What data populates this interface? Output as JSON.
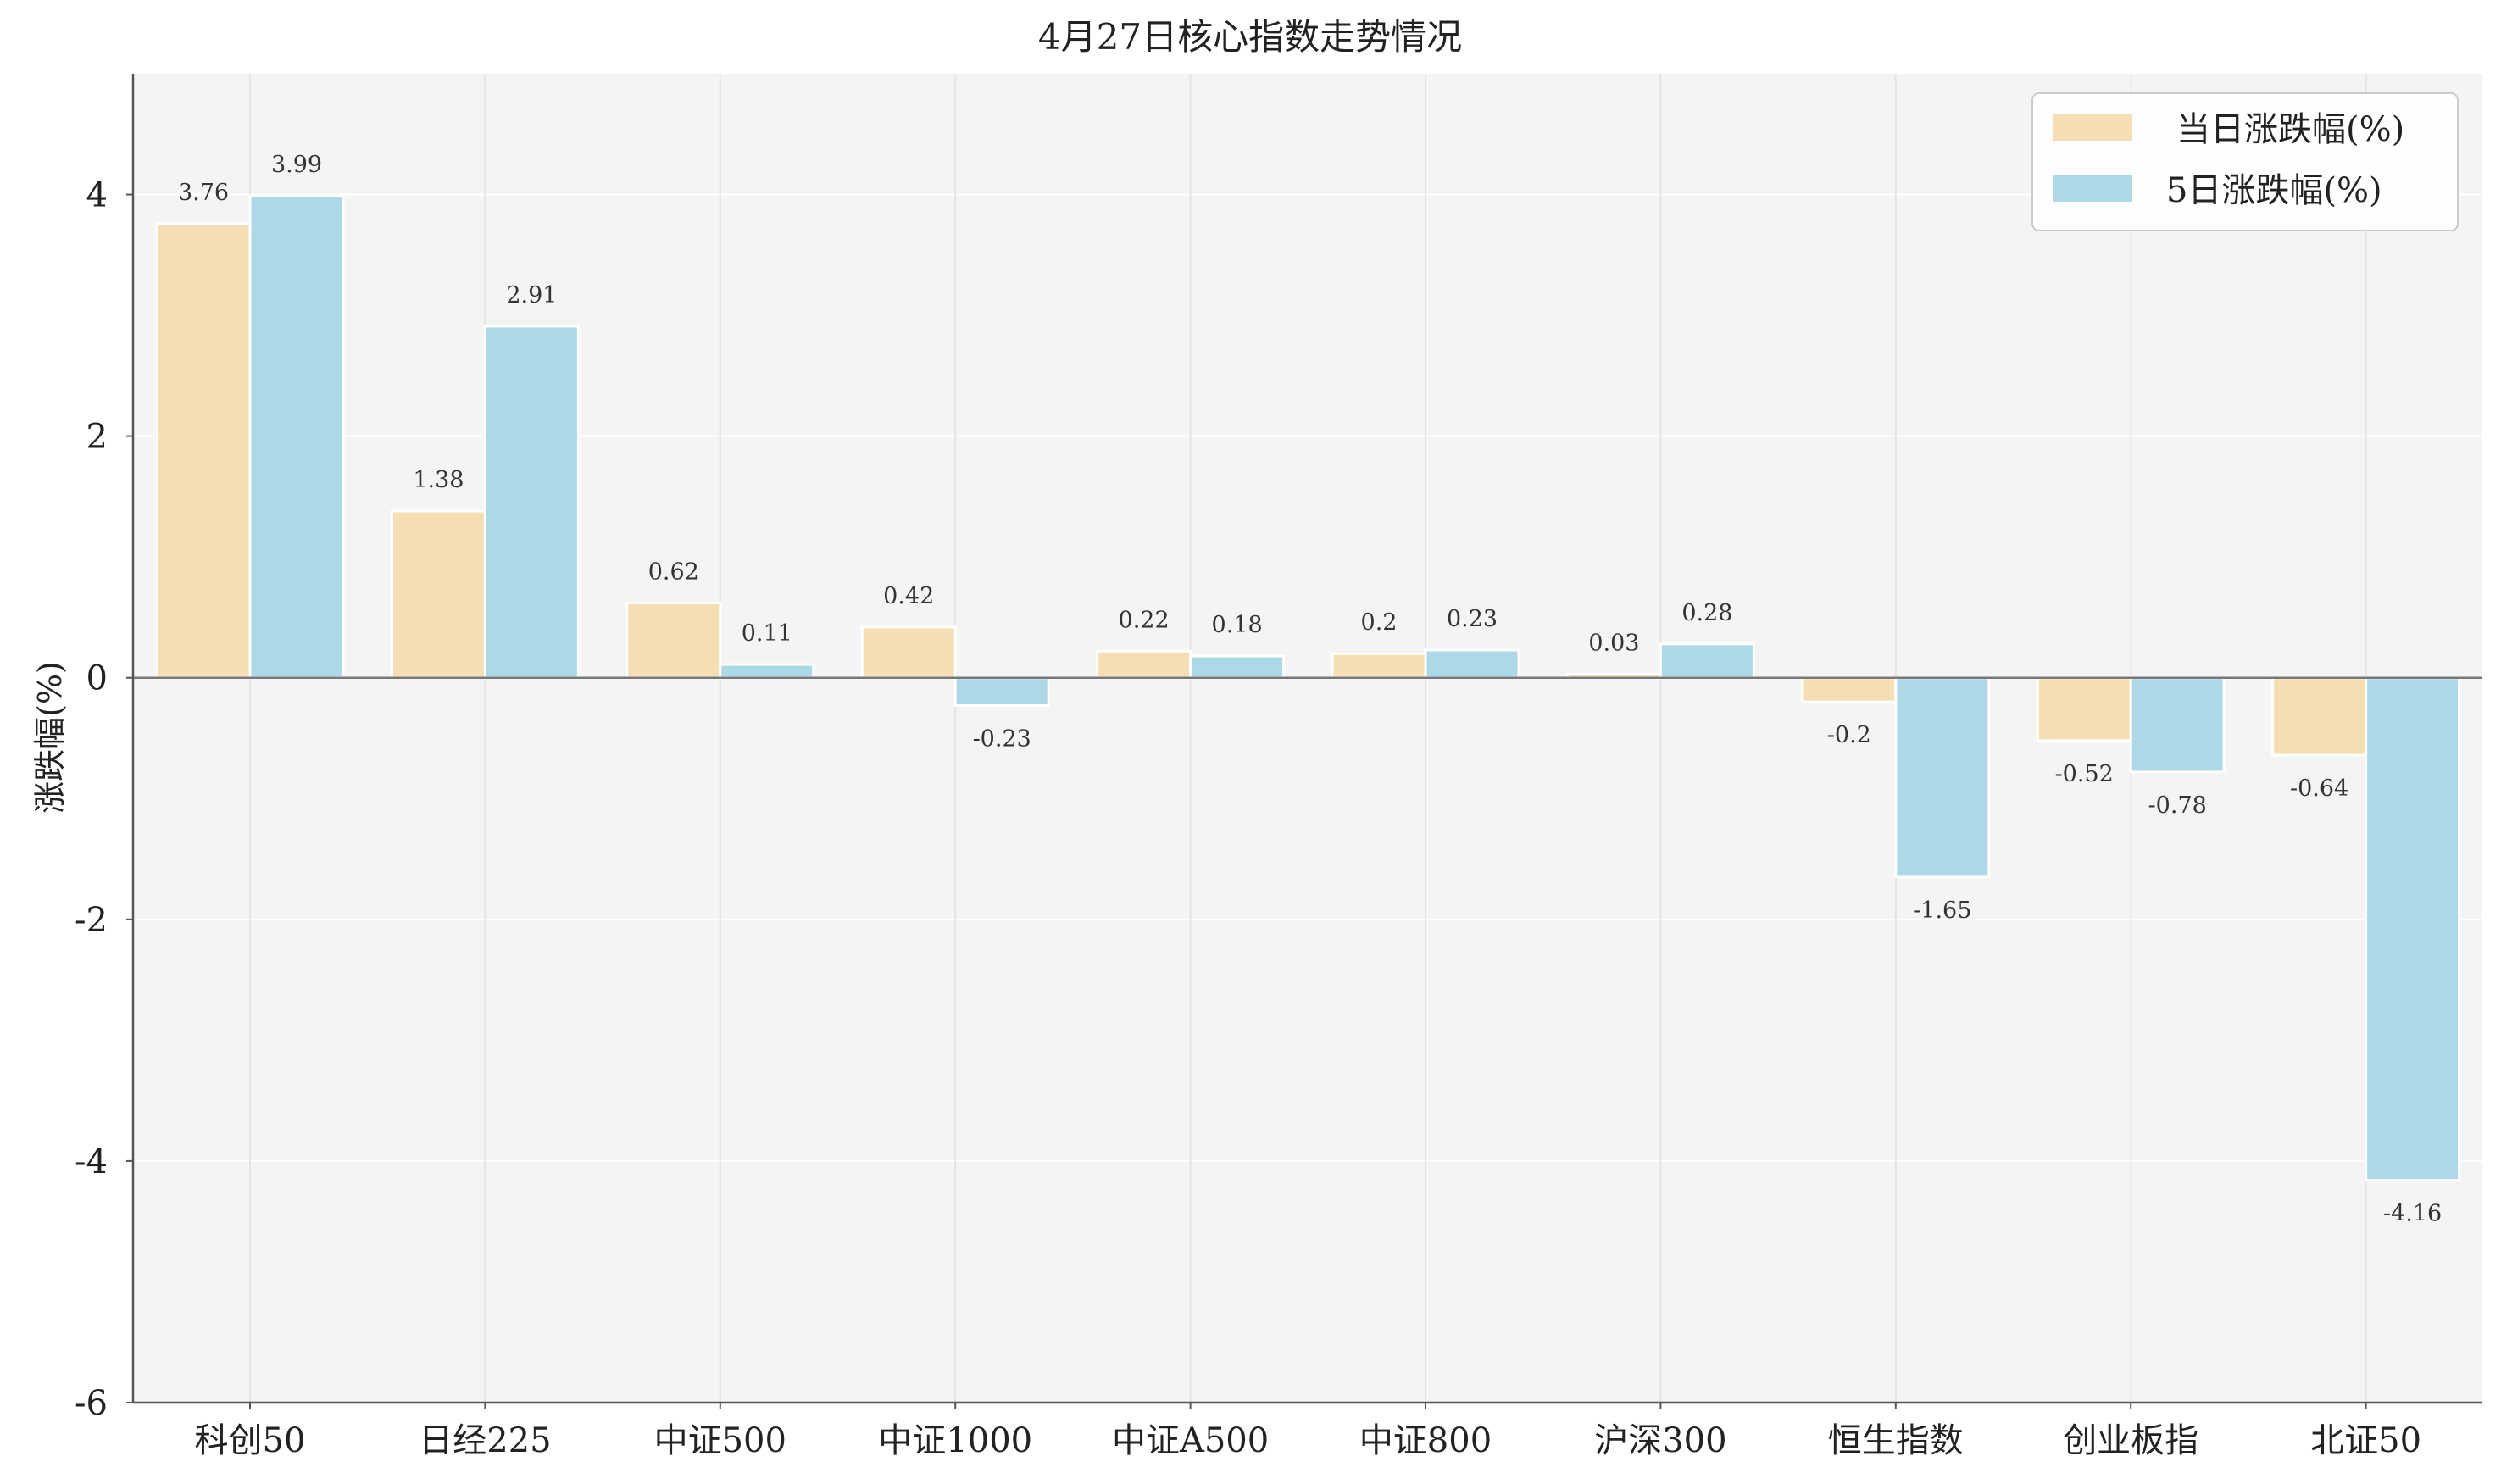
{
  "chart_data": {
    "type": "bar",
    "title": "4月27日核心指数走势情况",
    "xlabel": "",
    "ylabel": "涨跌幅(%)",
    "ylim": [
      -6,
      5
    ],
    "yticks": [
      4,
      2,
      0,
      -2,
      -4,
      -6
    ],
    "ytick_labels": [
      "4",
      "2",
      "0",
      "-2",
      "-4",
      "-6"
    ],
    "grid": true,
    "legend_position": "top-right",
    "categories": [
      "科创50",
      "日经225",
      "中证500",
      "中证1000",
      "中证A500",
      "中证800",
      "沪深300",
      "恒生指数",
      "创业板指",
      "北证50"
    ],
    "series": [
      {
        "name": "当日涨跌幅(%)",
        "color": "#f5deb3",
        "values": [
          3.76,
          1.38,
          0.62,
          0.42,
          0.22,
          0.2,
          0.03,
          -0.2,
          -0.52,
          -0.64
        ],
        "labels": [
          "3.76",
          "1.38",
          "0.62",
          "0.42",
          "0.22",
          "0.2",
          "0.03",
          "-0.2",
          "-0.52",
          "-0.64"
        ]
      },
      {
        "name": "5日涨跌幅(%)",
        "color": "#add8e6",
        "values": [
          3.99,
          2.91,
          0.11,
          -0.23,
          0.18,
          0.23,
          0.28,
          -1.65,
          -0.78,
          -4.16
        ],
        "labels": [
          "3.99",
          "2.91",
          "0.11",
          "-0.23",
          "0.18",
          "0.23",
          "0.28",
          "-1.65",
          "-0.78",
          "-4.16"
        ]
      }
    ]
  },
  "colors": {
    "plot_background": "#f4f4f4",
    "grid": "#ffffff",
    "category_grid": "#e4e4e4",
    "axis": "#555555",
    "zero_line": "#777777"
  }
}
